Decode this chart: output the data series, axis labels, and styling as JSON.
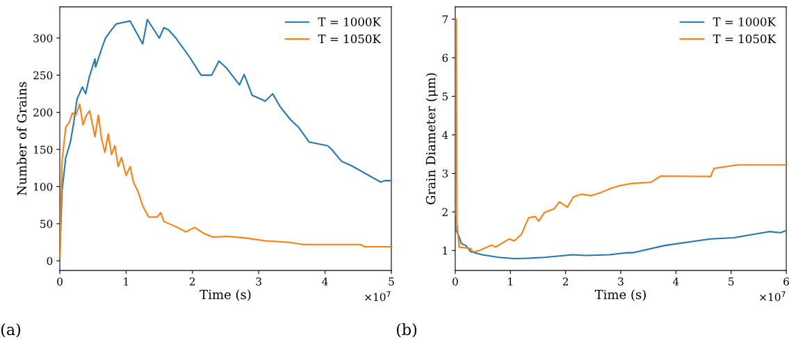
{
  "chart_data": [
    {
      "type": "line",
      "xlabel": "Time (s)",
      "ylabel": "Number of Grains",
      "legend": "top right",
      "grid": false,
      "xlim": [
        0,
        5
      ],
      "xticks": [
        0,
        1,
        2,
        3,
        4,
        5
      ],
      "ylim": [
        -13,
        342
      ],
      "yticks": [
        0,
        50,
        100,
        150,
        200,
        250,
        300
      ],
      "annotations": [
        "(a)",
        "×10$^{7}$"
      ],
      "series": [
        {
          "name": "T = 1000K",
          "color": "#1f77b4",
          "x": [
            0,
            0.035,
            0.09,
            0.16,
            0.21,
            0.26,
            0.34,
            0.39,
            0.44,
            0.53,
            0.54,
            0.64,
            0.69,
            0.78,
            0.85,
            1.06,
            1.25,
            1.32,
            1.5,
            1.57,
            1.64,
            1.75,
            1.96,
            2.13,
            2.29,
            2.4,
            2.52,
            2.71,
            2.78,
            2.9,
            3.1,
            3.21,
            3.32,
            3.48,
            3.6,
            3.76,
            4.04,
            4.1,
            4.25,
            4.4,
            4.6,
            4.84,
            4.9,
            5
          ],
          "values": [
            5,
            96,
            139,
            160,
            186,
            218,
            234,
            225,
            246,
            272,
            261,
            288,
            300,
            311,
            319,
            323,
            292,
            325,
            300,
            314,
            311,
            300,
            274,
            250,
            250,
            269,
            259,
            237,
            251,
            223,
            215,
            225,
            208,
            190,
            180,
            160,
            155,
            150,
            134,
            128,
            118,
            106,
            108,
            108
          ]
        },
        {
          "name": "T = 1050K",
          "color": "#ff7f0e",
          "x": [
            0,
            0.035,
            0.09,
            0.14,
            0.19,
            0.24,
            0.3,
            0.35,
            0.4,
            0.45,
            0.53,
            0.58,
            0.63,
            0.68,
            0.73,
            0.78,
            0.83,
            0.88,
            0.93,
            1.0,
            1.06,
            1.11,
            1.18,
            1.25,
            1.34,
            1.47,
            1.52,
            1.57,
            1.75,
            1.9,
            2.03,
            2.17,
            2.31,
            2.52,
            2.78,
            3.1,
            3.45,
            3.67,
            4.53,
            4.6,
            5
          ],
          "values": [
            5,
            136,
            180,
            186,
            199,
            196,
            211,
            183,
            196,
            202,
            167,
            196,
            164,
            146,
            171,
            143,
            155,
            127,
            139,
            115,
            127,
            106,
            93,
            74,
            59,
            59,
            65,
            53,
            46,
            39,
            45,
            37,
            32,
            33,
            31,
            27,
            25,
            22,
            22,
            19,
            19
          ]
        }
      ]
    },
    {
      "type": "line",
      "xlabel": "Time (s)",
      "ylabel": "Grain Diameter (μm)",
      "legend": "top right",
      "grid": false,
      "xlim": [
        0,
        6
      ],
      "xticks": [
        0,
        1,
        2,
        3,
        4,
        5,
        6
      ],
      "ylim": [
        0.48,
        7.32
      ],
      "yticks": [
        1,
        2,
        3,
        4,
        5,
        6,
        7
      ],
      "annotations": [
        "(b)",
        "×10$^{7}$"
      ],
      "series": [
        {
          "name": "T = 1000K",
          "color": "#1f77b4",
          "x": [
            0,
            0.01,
            0.07,
            0.11,
            0.19,
            0.28,
            0.49,
            0.79,
            1.07,
            1.33,
            1.62,
            2.12,
            2.37,
            2.79,
            3.09,
            3.21,
            3.8,
            4.63,
            5.05,
            5.69,
            5.9,
            6
          ],
          "values": [
            1.9,
            1.54,
            1.36,
            1.18,
            1.13,
            0.97,
            0.89,
            0.82,
            0.79,
            0.8,
            0.82,
            0.89,
            0.87,
            0.89,
            0.94,
            0.94,
            1.13,
            1.3,
            1.33,
            1.49,
            1.46,
            1.52
          ]
        },
        {
          "name": "T = 1050K",
          "color": "#ff7f0e",
          "x": [
            0.02,
            0.03,
            0.07,
            0.28,
            0.32,
            0.44,
            0.65,
            0.73,
            0.98,
            1.07,
            1.2,
            1.33,
            1.45,
            1.51,
            1.62,
            1.79,
            1.89,
            2.03,
            2.14,
            2.29,
            2.46,
            2.63,
            2.84,
            2.97,
            3.21,
            3.55,
            3.72,
            4.63,
            4.69,
            5.12,
            6
          ],
          "values": [
            7.0,
            1.72,
            1.09,
            1.05,
            0.96,
            1.0,
            1.14,
            1.09,
            1.3,
            1.25,
            1.42,
            1.85,
            1.88,
            1.76,
            1.99,
            2.08,
            2.26,
            2.12,
            2.39,
            2.46,
            2.42,
            2.5,
            2.62,
            2.68,
            2.74,
            2.77,
            2.93,
            2.92,
            3.13,
            3.22,
            3.22
          ]
        }
      ]
    }
  ]
}
